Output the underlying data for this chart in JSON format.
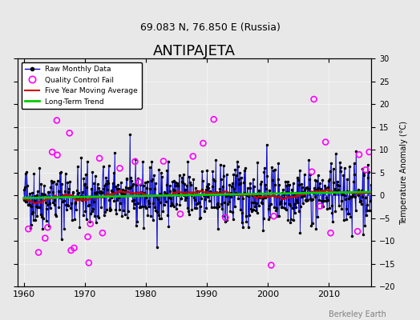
{
  "title": "ANTIPAJETA",
  "subtitle": "69.083 N, 76.850 E (Russia)",
  "ylabel": "Temperature Anomaly (°C)",
  "xlabel_bottom": "Berkeley Earth",
  "xlim": [
    1959,
    2017
  ],
  "ylim": [
    -20,
    30
  ],
  "yticks": [
    -20,
    -15,
    -10,
    -5,
    0,
    5,
    10,
    15,
    20,
    25,
    30
  ],
  "xticks": [
    1960,
    1970,
    1980,
    1990,
    2000,
    2010
  ],
  "bg_color": "#e8e8e8",
  "plot_bg_color": "#e8e8e8",
  "raw_data_color": "#0000cc",
  "qc_fail_color": "#ff00ff",
  "moving_avg_color": "#cc0000",
  "trend_color": "#00cc00",
  "seed": 42
}
